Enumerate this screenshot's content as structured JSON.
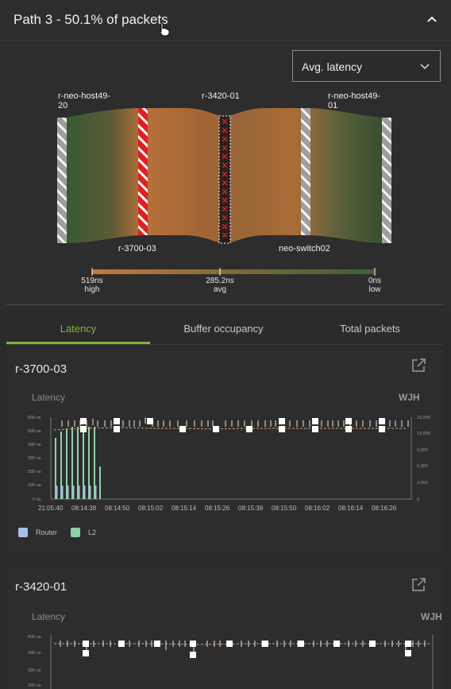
{
  "header": {
    "title": "Path 3 - 50.1% of packets"
  },
  "metric_select": {
    "value": "Avg. latency"
  },
  "flow": {
    "top_nodes": [
      "r-neo-host49-\n20",
      "r-3420-01",
      "r-neo-host49-\n01"
    ],
    "bottom_nodes": [
      "r-3700-03",
      "neo-switch02"
    ],
    "scale": [
      {
        "value": "519ns",
        "label": "high"
      },
      {
        "value": "285.2ns",
        "label": "avg"
      },
      {
        "value": "0ns",
        "label": "low"
      }
    ]
  },
  "tabs": [
    {
      "label": "Latency",
      "active": true
    },
    {
      "label": "Buffer occupancy",
      "active": false
    },
    {
      "label": "Total packets",
      "active": false
    }
  ],
  "cards": [
    {
      "title": "r-3700-03",
      "left_label": "Latency",
      "right_label": "WJH",
      "y_ticks": [
        "600 ns",
        "500 ns",
        "400 ns",
        "300 ns",
        "200 ns",
        "100 ns",
        "0 ns"
      ],
      "y2_ticks": [
        "15,000",
        "12,000",
        "9,000",
        "6,000",
        "3,000",
        "0"
      ],
      "x_ticks": [
        "21:05:40",
        "08:14:38",
        "08:14:50",
        "08:15:02",
        "08:15:14",
        "08:15:26",
        "08:15:38",
        "08:15:50",
        "08:16:02",
        "08:16:14",
        "08:16:26"
      ],
      "legend": [
        {
          "name": "Router",
          "color": "#a9bfe8"
        },
        {
          "name": "L2",
          "color": "#8fd1a9"
        }
      ]
    },
    {
      "title": "r-3420-01",
      "left_label": "Latency",
      "right_label": "WJH",
      "y_ticks": [
        "500 ns",
        "400 ns",
        "300 ns",
        "200 ns"
      ]
    }
  ],
  "colors": {
    "accent": "#7cb342",
    "high": "#c0773a",
    "low": "#3e5f35"
  }
}
